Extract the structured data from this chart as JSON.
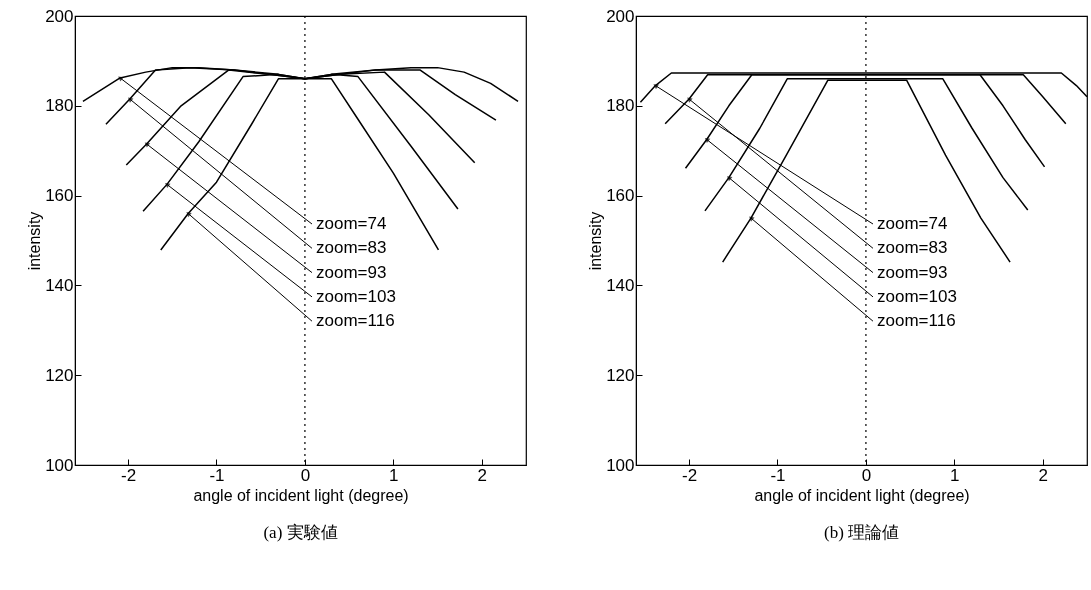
{
  "chart_data": [
    {
      "type": "line",
      "title": "(a) 実験値",
      "xlabel": "angle of incident light (degree)",
      "ylabel": "intensity",
      "xlim": [
        -2.6,
        2.5
      ],
      "ylim": [
        100,
        200
      ],
      "xticks": [
        -2,
        -1,
        0,
        1,
        2
      ],
      "yticks": [
        100,
        120,
        140,
        160,
        180,
        200
      ],
      "ref_lines": [
        {
          "axis": "x",
          "value": 0,
          "color": "#000000",
          "line_style": "dotted"
        }
      ],
      "series": [
        {
          "name": "zoom=74",
          "color": "#000000",
          "x": [
            -2.51,
            -2.09,
            -1.8,
            -1.5,
            -1.2,
            -0.8,
            -0.4,
            0,
            0.4,
            0.8,
            1.2,
            1.5,
            1.8,
            2.1,
            2.41
          ],
          "values": [
            181,
            186.2,
            187.5,
            188.5,
            188.5,
            188,
            187,
            186,
            187,
            188,
            188.5,
            188.5,
            187.5,
            185,
            181
          ]
        },
        {
          "name": "zoom=83",
          "color": "#000000",
          "x": [
            -2.25,
            -1.98,
            -1.69,
            -1.3,
            -0.8,
            -0.3,
            0,
            0.3,
            0.8,
            1.3,
            1.7,
            2.16
          ],
          "values": [
            175.9,
            181.5,
            188,
            188.5,
            188,
            187,
            186,
            187,
            188,
            188,
            182.5,
            176.8
          ]
        },
        {
          "name": "zoom=93",
          "color": "#000000",
          "x": [
            -2.02,
            -1.79,
            -1.4,
            -0.86,
            -0.4,
            0,
            0.4,
            0.9,
            1.4,
            1.92
          ],
          "values": [
            166.8,
            171.5,
            180,
            188,
            187,
            186,
            187,
            187.5,
            178,
            167.3
          ]
        },
        {
          "name": "zoom=103",
          "color": "#000000",
          "x": [
            -1.83,
            -1.56,
            -1.2,
            -0.7,
            -0.3,
            0,
            0.3,
            0.6,
            1.2,
            1.73
          ],
          "values": [
            156.5,
            162.5,
            172,
            186.5,
            187,
            186,
            187,
            186.5,
            171,
            157
          ]
        },
        {
          "name": "zoom=116",
          "color": "#000000",
          "x": [
            -1.63,
            -1.32,
            -1.0,
            -0.6,
            -0.3,
            0,
            0.3,
            0.6,
            1.0,
            1.51
          ],
          "values": [
            147.9,
            156,
            163,
            176,
            186,
            186,
            186,
            177,
            165,
            147.9
          ]
        }
      ]
    },
    {
      "type": "line",
      "title": "(b) 理論値",
      "xlabel": "angle of incident light (degree)",
      "ylabel": "intensity",
      "xlim": [
        -2.6,
        2.5
      ],
      "ylim": [
        100,
        200
      ],
      "xticks": [
        -2,
        -1,
        0,
        1,
        2
      ],
      "yticks": [
        100,
        120,
        140,
        160,
        180,
        200
      ],
      "ref_lines": [
        {
          "axis": "x",
          "value": 0,
          "color": "#000000",
          "line_style": "dotted"
        }
      ],
      "series": [
        {
          "name": "zoom=74",
          "color": "#000000",
          "x": [
            -2.55,
            -2.38,
            -2.2,
            2.21,
            2.38,
            2.5
          ],
          "values": [
            180.8,
            184.5,
            187.3,
            187.3,
            184.5,
            182
          ]
        },
        {
          "name": "zoom=83",
          "color": "#000000",
          "x": [
            -2.27,
            -2.0,
            -1.79,
            1.78,
            2.0,
            2.26
          ],
          "values": [
            176,
            181.5,
            186.9,
            186.9,
            182,
            176
          ]
        },
        {
          "name": "zoom=93",
          "color": "#000000",
          "x": [
            -2.04,
            -1.8,
            -1.55,
            -1.29,
            1.29,
            1.55,
            1.8,
            2.02
          ],
          "values": [
            166.1,
            172.5,
            180,
            186.9,
            186.9,
            180,
            172.5,
            166.4
          ]
        },
        {
          "name": "zoom=103",
          "color": "#000000",
          "x": [
            -1.82,
            -1.55,
            -1.2,
            -0.89,
            0.87,
            1.2,
            1.55,
            1.83
          ],
          "values": [
            156.6,
            164,
            175,
            186,
            186,
            175,
            164,
            156.8
          ]
        },
        {
          "name": "zoom=116",
          "color": "#000000",
          "x": [
            -1.62,
            -1.3,
            -0.9,
            -0.43,
            0.46,
            0.9,
            1.3,
            1.63
          ],
          "values": [
            145.2,
            155,
            169,
            185.7,
            185.7,
            169,
            155,
            145.2
          ]
        }
      ]
    }
  ]
}
